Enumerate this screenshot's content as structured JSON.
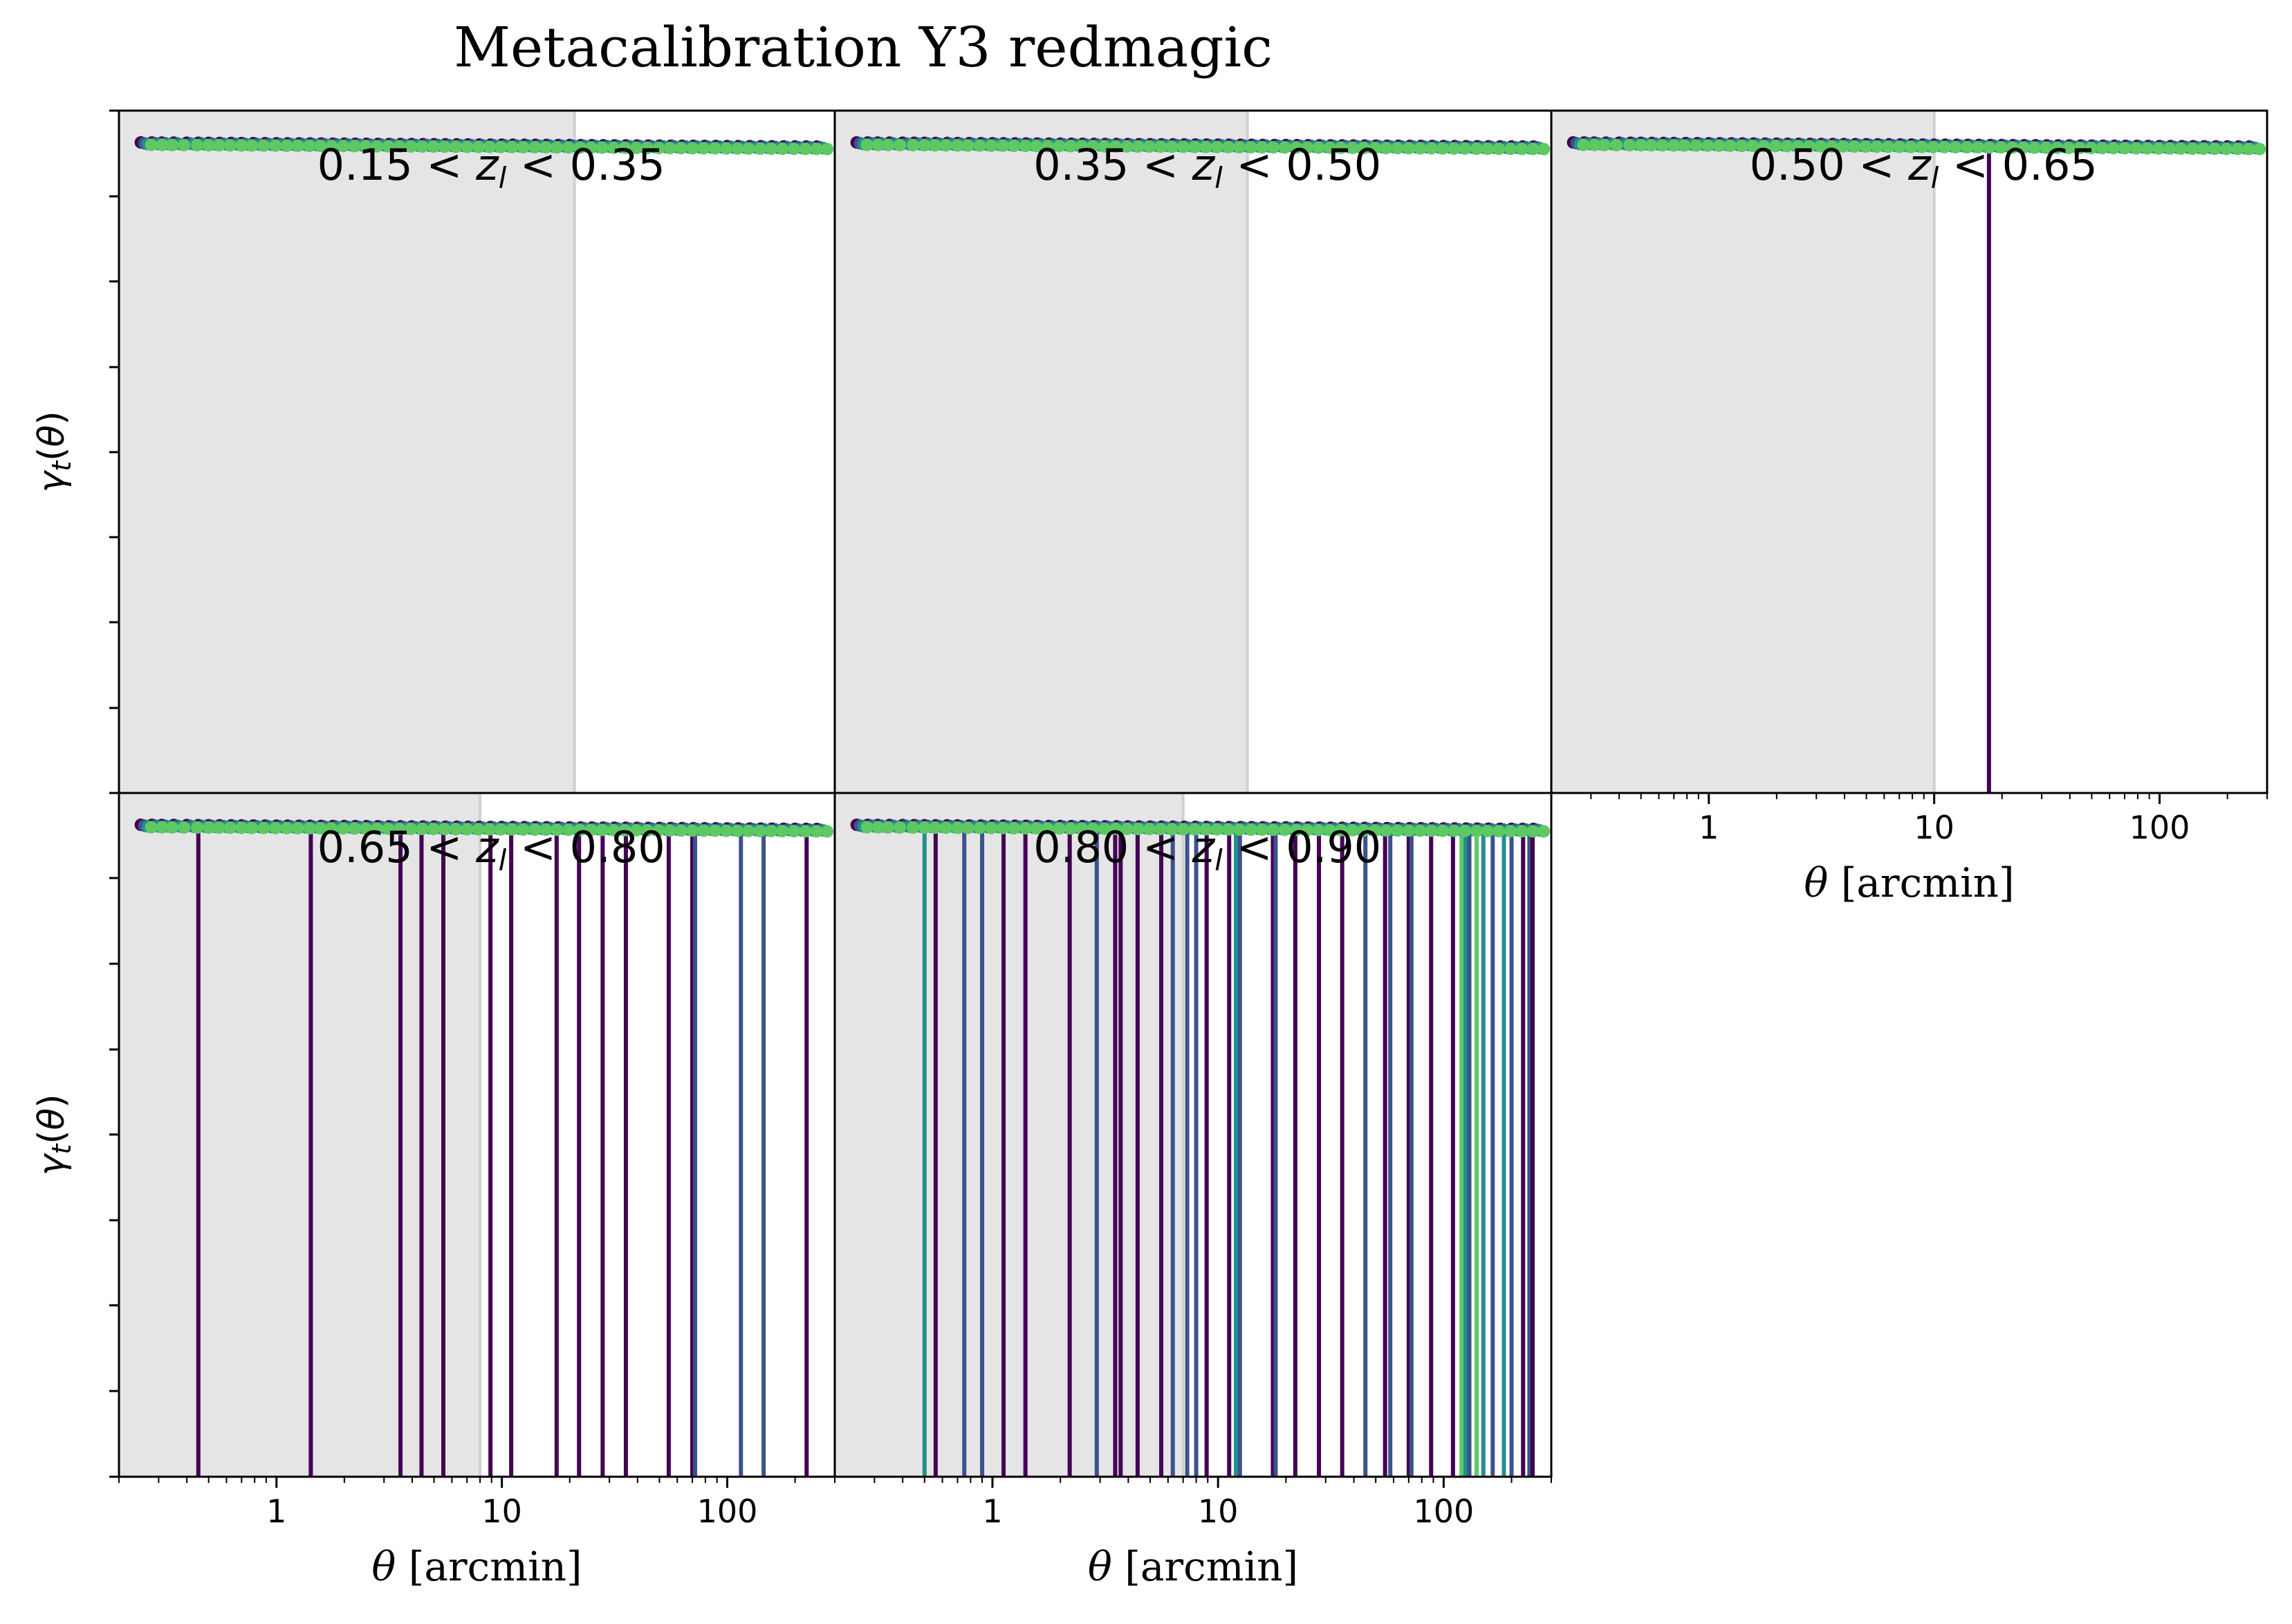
{
  "figure": {
    "title": "Metacalibration Y3 redmagic",
    "ylabel": "γt(θ)",
    "xlabel": "θ [arcmin]"
  },
  "chart_data": [
    {
      "type": "scatter",
      "panel": "bin1",
      "label": "0.15 < zl < 0.35",
      "xscale": "log",
      "xlim": [
        0.2,
        300
      ],
      "x_ticks": [
        "1",
        "10",
        "100"
      ],
      "scale_cut_theta": 21,
      "grid": false,
      "error_bar_theta": [],
      "points_theta": [
        0.25,
        0.28,
        0.31,
        0.35,
        0.4,
        0.45,
        0.5,
        0.56,
        0.63,
        0.7,
        0.79,
        0.89,
        1.0,
        1.12,
        1.26,
        1.41,
        1.58,
        1.78,
        2.0,
        2.24,
        2.51,
        2.82,
        3.16,
        3.55,
        3.98,
        4.47,
        5.01,
        5.62,
        6.31,
        7.08,
        7.94,
        8.91,
        10.0,
        11.2,
        12.6,
        14.1,
        15.8,
        17.8,
        20.0,
        22.4,
        25.1,
        28.2,
        31.6,
        35.5,
        39.8,
        44.7,
        50.1,
        56.2,
        63.1,
        70.8,
        79.4,
        89.1,
        100,
        112,
        126,
        141,
        158,
        178,
        200,
        224,
        250
      ]
    },
    {
      "type": "scatter",
      "panel": "bin2",
      "label": "0.35 < zl < 0.50",
      "xscale": "log",
      "xlim": [
        0.2,
        300
      ],
      "x_ticks": [
        "1",
        "10",
        "100"
      ],
      "scale_cut_theta": 13.5,
      "grid": false,
      "error_bar_theta": [],
      "points_theta": [
        0.25,
        0.28,
        0.31,
        0.35,
        0.4,
        0.45,
        0.5,
        0.56,
        0.63,
        0.7,
        0.79,
        0.89,
        1.0,
        1.12,
        1.26,
        1.41,
        1.58,
        1.78,
        2.0,
        2.24,
        2.51,
        2.82,
        3.16,
        3.55,
        3.98,
        4.47,
        5.01,
        5.62,
        6.31,
        7.08,
        7.94,
        8.91,
        10.0,
        11.2,
        12.6,
        14.1,
        15.8,
        17.8,
        20.0,
        22.4,
        25.1,
        28.2,
        31.6,
        35.5,
        39.8,
        44.7,
        50.1,
        56.2,
        63.1,
        70.8,
        79.4,
        89.1,
        100,
        112,
        126,
        141,
        158,
        178,
        200,
        224,
        250
      ]
    },
    {
      "type": "scatter",
      "panel": "bin3",
      "label": "0.50 < zl < 0.65",
      "xscale": "log",
      "xlim": [
        0.2,
        300
      ],
      "x_ticks": [
        "1",
        "10",
        "100"
      ],
      "scale_cut_theta": 10.0,
      "grid": false,
      "error_bar_theta": [
        17.5
      ],
      "error_bar_series": [
        0
      ],
      "points_theta": [
        0.25,
        0.28,
        0.31,
        0.35,
        0.4,
        0.45,
        0.5,
        0.56,
        0.63,
        0.7,
        0.79,
        0.89,
        1.0,
        1.12,
        1.26,
        1.41,
        1.58,
        1.78,
        2.0,
        2.24,
        2.51,
        2.82,
        3.16,
        3.55,
        3.98,
        4.47,
        5.01,
        5.62,
        6.31,
        7.08,
        7.94,
        8.91,
        10.0,
        11.2,
        12.6,
        14.1,
        15.8,
        17.8,
        20.0,
        22.4,
        25.1,
        28.2,
        31.6,
        35.5,
        39.8,
        44.7,
        50.1,
        56.2,
        63.1,
        70.8,
        79.4,
        89.1,
        100,
        112,
        126,
        141,
        158,
        178,
        200,
        224,
        250
      ]
    },
    {
      "type": "scatter",
      "panel": "bin4",
      "label": "0.65 < zl < 0.80",
      "xscale": "log",
      "xlim": [
        0.2,
        300
      ],
      "x_ticks": [
        "1",
        "10",
        "100"
      ],
      "scale_cut_theta": 8.0,
      "grid": false,
      "error_bar_theta": [
        0.45,
        1.42,
        3.55,
        4.4,
        5.5,
        8.9,
        11.0,
        17.5,
        22.0,
        28.0,
        35.5,
        55.0,
        70.0,
        72.0,
        115,
        145,
        225
      ],
      "error_bar_series": [
        0,
        0,
        0,
        0,
        0,
        0,
        0,
        0,
        0,
        0,
        0,
        0,
        0,
        1,
        1,
        1,
        0
      ],
      "points_theta": [
        0.25,
        0.28,
        0.31,
        0.35,
        0.4,
        0.45,
        0.5,
        0.56,
        0.63,
        0.7,
        0.79,
        0.89,
        1.0,
        1.12,
        1.26,
        1.41,
        1.58,
        1.78,
        2.0,
        2.24,
        2.51,
        2.82,
        3.16,
        3.55,
        3.98,
        4.47,
        5.01,
        5.62,
        6.31,
        7.08,
        7.94,
        8.91,
        10.0,
        11.2,
        12.6,
        14.1,
        15.8,
        17.8,
        20.0,
        22.4,
        25.1,
        28.2,
        31.6,
        35.5,
        39.8,
        44.7,
        50.1,
        56.2,
        63.1,
        70.8,
        79.4,
        89.1,
        100,
        112,
        126,
        141,
        158,
        178,
        200,
        224,
        250
      ]
    },
    {
      "type": "scatter",
      "panel": "bin5",
      "label": "0.80 < zl < 0.90",
      "xscale": "log",
      "xlim": [
        0.2,
        300
      ],
      "x_ticks": [
        "1",
        "10",
        "100"
      ],
      "scale_cut_theta": 7.0,
      "grid": false,
      "error_bar_theta": [
        0.5,
        0.56,
        0.75,
        0.9,
        1.12,
        1.4,
        2.2,
        2.9,
        3.5,
        3.7,
        4.4,
        5.6,
        6.3,
        7.3,
        8.0,
        8.9,
        11.2,
        12.0,
        12.5,
        17.5,
        18.0,
        22.0,
        28.0,
        35.5,
        45.0,
        55.0,
        58.0,
        70.0,
        72.0,
        88.0,
        110,
        120,
        125,
        130,
        140,
        150,
        165,
        185,
        200,
        225,
        240,
        248
      ],
      "error_bar_series": [
        2,
        0,
        1,
        1,
        0,
        0,
        0,
        1,
        0,
        0,
        0,
        0,
        1,
        1,
        1,
        0,
        0,
        2,
        1,
        0,
        1,
        0,
        0,
        0,
        1,
        0,
        1,
        0,
        1,
        0,
        0,
        3,
        2,
        1,
        3,
        2,
        1,
        2,
        1,
        0,
        1,
        0
      ],
      "points_theta": [
        0.25,
        0.28,
        0.31,
        0.35,
        0.4,
        0.45,
        0.5,
        0.56,
        0.63,
        0.7,
        0.79,
        0.89,
        1.0,
        1.12,
        1.26,
        1.41,
        1.58,
        1.78,
        2.0,
        2.24,
        2.51,
        2.82,
        3.16,
        3.55,
        3.98,
        4.47,
        5.01,
        5.62,
        6.31,
        7.08,
        7.94,
        8.91,
        10.0,
        11.2,
        12.6,
        14.1,
        15.8,
        17.8,
        20.0,
        22.4,
        25.1,
        28.2,
        31.6,
        35.5,
        39.8,
        44.7,
        50.1,
        56.2,
        63.1,
        70.8,
        79.4,
        89.1,
        100,
        112,
        126,
        141,
        158,
        178,
        200,
        224,
        250
      ]
    }
  ],
  "series_colors": [
    "#440154",
    "#3b528b",
    "#21918c",
    "#5ec962"
  ],
  "shade_color": "#e5e5e5",
  "shade_edge_color": "#d0d0d0"
}
